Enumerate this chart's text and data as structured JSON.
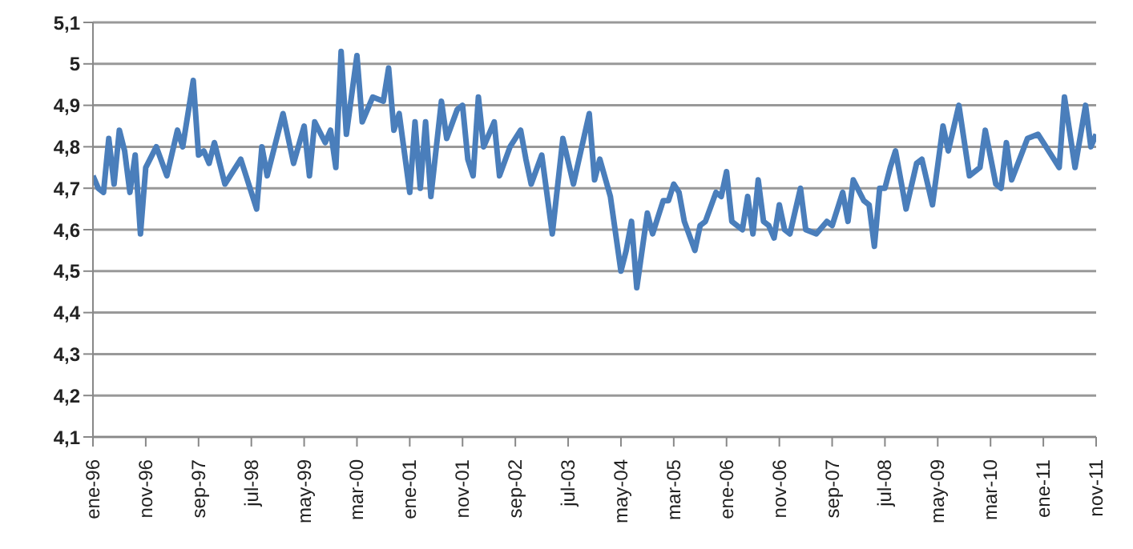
{
  "chart_data": {
    "type": "line",
    "grid": "y",
    "legend": false,
    "line_style": "solid",
    "xlim": [
      "1996-01",
      "2011-11"
    ],
    "xticks": [
      {
        "value": "1996-01",
        "label": "ene-96"
      },
      {
        "value": "1996-11",
        "label": "nov-96"
      },
      {
        "value": "1997-09",
        "label": "sep-97"
      },
      {
        "value": "1998-07",
        "label": "jul-98"
      },
      {
        "value": "1999-05",
        "label": "may-99"
      },
      {
        "value": "2000-03",
        "label": "mar-00"
      },
      {
        "value": "2001-01",
        "label": "ene-01"
      },
      {
        "value": "2001-11",
        "label": "nov-01"
      },
      {
        "value": "2002-09",
        "label": "sep-02"
      },
      {
        "value": "2003-07",
        "label": "jul-03"
      },
      {
        "value": "2004-05",
        "label": "may-04"
      },
      {
        "value": "2005-03",
        "label": "mar-05"
      },
      {
        "value": "2006-01",
        "label": "ene-06"
      },
      {
        "value": "2006-11",
        "label": "nov-06"
      },
      {
        "value": "2007-09",
        "label": "sep-07"
      },
      {
        "value": "2008-07",
        "label": "jul-08"
      },
      {
        "value": "2009-05",
        "label": "may-09"
      },
      {
        "value": "2010-03",
        "label": "mar-10"
      },
      {
        "value": "2011-01",
        "label": "ene-11"
      },
      {
        "value": "2011-11",
        "label": "nov-11"
      }
    ],
    "ylim": [
      4.1,
      5.1
    ],
    "yticks": [
      {
        "value": 4.1,
        "label": "4,1"
      },
      {
        "value": 4.2,
        "label": "4,2"
      },
      {
        "value": 4.3,
        "label": "4,3"
      },
      {
        "value": 4.4,
        "label": "4,4"
      },
      {
        "value": 4.5,
        "label": "4,5"
      },
      {
        "value": 4.6,
        "label": "4,6"
      },
      {
        "value": 4.7,
        "label": "4,7"
      },
      {
        "value": 4.8,
        "label": "4,8"
      },
      {
        "value": 4.9,
        "label": "4,9"
      },
      5,
      {
        "value": 5.1,
        "label": "5,1"
      }
    ],
    "series": [
      {
        "color": "#4a7ebb",
        "x": [
          "1996-01",
          "1996-02",
          "1996-03",
          "1996-04",
          "1996-05",
          "1996-06",
          "1996-07",
          "1996-08",
          "1996-09",
          "1996-10",
          "1996-11",
          "1997-01",
          "1997-03",
          "1997-05",
          "1997-06",
          "1997-08",
          "1997-09",
          "1997-10",
          "1997-11",
          "1997-12",
          "1998-02",
          "1998-05",
          "1998-08",
          "1998-09",
          "1998-10",
          "1999-01",
          "1999-03",
          "1999-05",
          "1999-06",
          "1999-07",
          "1999-09",
          "1999-10",
          "1999-11",
          "1999-12",
          "2000-01",
          "2000-03",
          "2000-04",
          "2000-06",
          "2000-08",
          "2000-09",
          "2000-10",
          "2000-11",
          "2001-01",
          "2001-02",
          "2001-03",
          "2001-04",
          "2001-05",
          "2001-07",
          "2001-08",
          "2001-10",
          "2001-11",
          "2001-12",
          "2002-01",
          "2002-02",
          "2002-03",
          "2002-05",
          "2002-06",
          "2002-08",
          "2002-10",
          "2002-11",
          "2002-12",
          "2003-02",
          "2003-04",
          "2003-06",
          "2003-08",
          "2003-11",
          "2003-12",
          "2004-01",
          "2004-03",
          "2004-05",
          "2004-06",
          "2004-07",
          "2004-08",
          "2004-10",
          "2004-11",
          "2005-01",
          "2005-02",
          "2005-03",
          "2005-04",
          "2005-05",
          "2005-07",
          "2005-08",
          "2005-09",
          "2005-11",
          "2005-12",
          "2006-01",
          "2006-02",
          "2006-04",
          "2006-05",
          "2006-06",
          "2006-07",
          "2006-08",
          "2006-09",
          "2006-10",
          "2006-11",
          "2006-12",
          "2007-01",
          "2007-03",
          "2007-04",
          "2007-06",
          "2007-08",
          "2007-09",
          "2007-11",
          "2007-12",
          "2008-01",
          "2008-03",
          "2008-04",
          "2008-05",
          "2008-06",
          "2008-07",
          "2008-08",
          "2008-09",
          "2008-11",
          "2009-01",
          "2009-02",
          "2009-04",
          "2009-06",
          "2009-07",
          "2009-09",
          "2009-11",
          "2010-01",
          "2010-02",
          "2010-04",
          "2010-05",
          "2010-06",
          "2010-07",
          "2010-10",
          "2010-12",
          "2011-03",
          "2011-04",
          "2011-05",
          "2011-07",
          "2011-09",
          "2011-10",
          "2011-11"
        ],
        "values": [
          4.73,
          4.7,
          4.69,
          4.82,
          4.71,
          4.84,
          4.79,
          4.69,
          4.78,
          4.59,
          4.75,
          4.8,
          4.73,
          4.84,
          4.8,
          4.96,
          4.78,
          4.79,
          4.76,
          4.81,
          4.71,
          4.77,
          4.65,
          4.8,
          4.73,
          4.88,
          4.76,
          4.85,
          4.73,
          4.86,
          4.81,
          4.84,
          4.75,
          5.03,
          4.83,
          5.02,
          4.86,
          4.92,
          4.91,
          4.99,
          4.84,
          4.88,
          4.69,
          4.86,
          4.7,
          4.86,
          4.68,
          4.91,
          4.82,
          4.89,
          4.9,
          4.77,
          4.73,
          4.92,
          4.8,
          4.86,
          4.73,
          4.8,
          4.84,
          4.77,
          4.71,
          4.78,
          4.59,
          4.82,
          4.71,
          4.88,
          4.72,
          4.77,
          4.68,
          4.5,
          4.55,
          4.62,
          4.46,
          4.64,
          4.59,
          4.67,
          4.67,
          4.71,
          4.69,
          4.62,
          4.55,
          4.61,
          4.62,
          4.69,
          4.68,
          4.74,
          4.62,
          4.6,
          4.68,
          4.59,
          4.72,
          4.62,
          4.61,
          4.58,
          4.66,
          4.6,
          4.59,
          4.7,
          4.6,
          4.59,
          4.62,
          4.61,
          4.69,
          4.62,
          4.72,
          4.67,
          4.66,
          4.56,
          4.7,
          4.7,
          4.75,
          4.79,
          4.65,
          4.76,
          4.77,
          4.66,
          4.85,
          4.79,
          4.9,
          4.73,
          4.75,
          4.84,
          4.71,
          4.7,
          4.81,
          4.72,
          4.82,
          4.83,
          4.77,
          4.75,
          4.92,
          4.75,
          4.9,
          4.8,
          4.83
        ]
      }
    ]
  }
}
